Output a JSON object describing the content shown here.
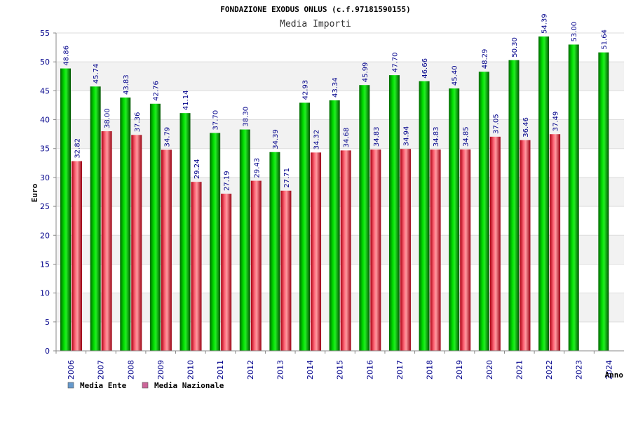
{
  "chart_data": {
    "type": "bar",
    "title": "FONDAZIONE EXODUS ONLUS (c.f.97181590155)",
    "subtitle": "Media Importi",
    "xlabel": "Anno",
    "ylabel": "Euro",
    "ylim": [
      0,
      55
    ],
    "yticks": [
      0,
      5,
      10,
      15,
      20,
      25,
      30,
      35,
      40,
      45,
      50,
      55
    ],
    "grid": true,
    "legend_position": "bottom-left",
    "categories": [
      "2006",
      "2007",
      "2008",
      "2009",
      "2010",
      "2011",
      "2012",
      "2013",
      "2014",
      "2015",
      "2016",
      "2017",
      "2018",
      "2019",
      "2020",
      "2021",
      "2022",
      "2023",
      "2024"
    ],
    "series": [
      {
        "name": "Media Ente",
        "color": "#009900",
        "legend_color": "#6699cc",
        "values": [
          48.86,
          45.74,
          43.83,
          42.76,
          41.14,
          37.7,
          38.3,
          34.39,
          42.93,
          43.34,
          45.99,
          47.7,
          46.66,
          45.4,
          48.29,
          50.3,
          54.39,
          53.0,
          51.64
        ],
        "labels": [
          "48.86",
          "45.74",
          "43.83",
          "42.76",
          "41.14",
          "37.70",
          "38.30",
          "34.39",
          "42.93",
          "43.34",
          "45.99",
          "47.70",
          "46.66",
          "45.40",
          "48.29",
          "50.30",
          "54.39",
          "53.00",
          "51.64"
        ]
      },
      {
        "name": "Media Nazionale",
        "color": "#dd2233",
        "legend_color": "#cc6699",
        "values": [
          32.82,
          38.0,
          37.36,
          34.79,
          29.24,
          27.19,
          29.43,
          27.71,
          34.32,
          34.68,
          34.83,
          34.94,
          34.83,
          34.85,
          37.05,
          36.46,
          37.49,
          null,
          null
        ],
        "labels": [
          "32.82",
          "38.00",
          "37.36",
          "34.79",
          "29.24",
          "27.19",
          "29.43",
          "27.71",
          "34.32",
          "34.68",
          "34.83",
          "34.94",
          "34.83",
          "34.85",
          "37.05",
          "36.46",
          "37.49",
          "",
          ""
        ]
      }
    ]
  }
}
